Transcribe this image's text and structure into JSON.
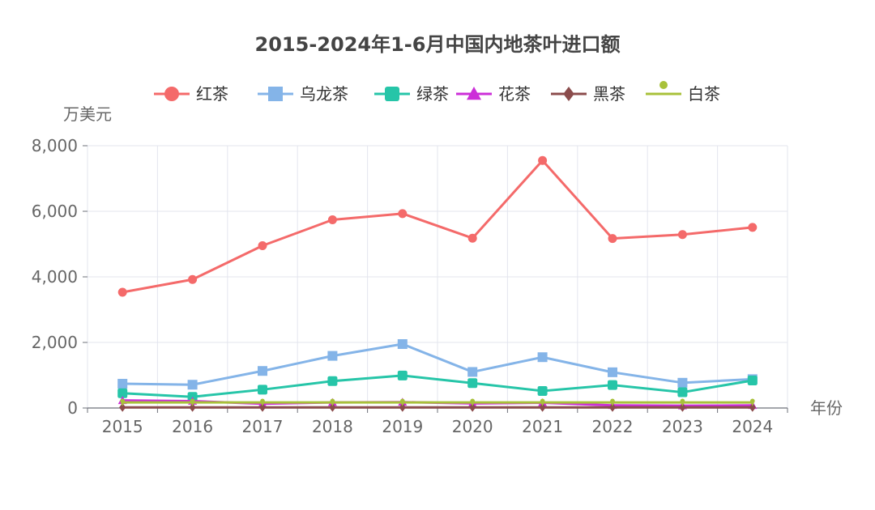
{
  "chart_data": {
    "type": "line",
    "title": "2015-2024年1-6月中国内地茶叶进口额",
    "xlabel": "年份",
    "ylabel": "万美元",
    "categories": [
      "2015",
      "2016",
      "2017",
      "2018",
      "2019",
      "2020",
      "2021",
      "2022",
      "2023",
      "2024"
    ],
    "ylim": [
      0,
      8000
    ],
    "yticks": [
      "0",
      "2,000",
      "4,000",
      "6,000",
      "8,000"
    ],
    "grid": true,
    "legend_position": "top",
    "series": [
      {
        "name": "红茶",
        "color": "#f46a6a",
        "marker": "circle",
        "values": [
          3530,
          3920,
          4950,
          5740,
          5930,
          5180,
          7550,
          5170,
          5290,
          5510
        ]
      },
      {
        "name": "乌龙茶",
        "color": "#84b4e8",
        "marker": "square",
        "values": [
          740,
          710,
          1130,
          1590,
          1950,
          1100,
          1550,
          1090,
          770,
          880
        ]
      },
      {
        "name": "绿茶",
        "color": "#26c5a8",
        "marker": "rounded-square",
        "values": [
          450,
          340,
          560,
          820,
          990,
          760,
          520,
          700,
          480,
          840
        ]
      },
      {
        "name": "花茶",
        "color": "#cc2fd8",
        "marker": "triangle",
        "values": [
          230,
          210,
          130,
          170,
          180,
          140,
          160,
          80,
          70,
          80
        ]
      },
      {
        "name": "黑茶",
        "color": "#8b4c4c",
        "marker": "diamond",
        "values": [
          20,
          20,
          20,
          20,
          20,
          20,
          20,
          20,
          20,
          20
        ]
      },
      {
        "name": "白茶",
        "color": "#a8c13a",
        "marker": "pin",
        "values": [
          170,
          170,
          170,
          170,
          170,
          170,
          170,
          170,
          170,
          170
        ]
      }
    ]
  }
}
